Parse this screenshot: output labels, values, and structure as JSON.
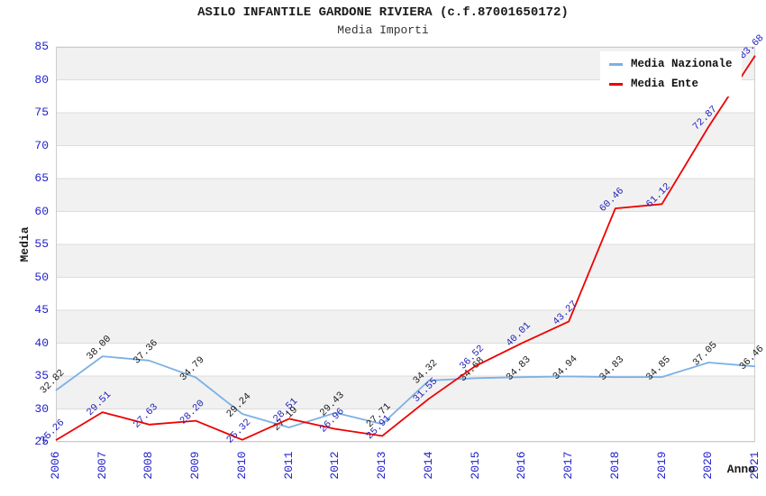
{
  "header": {
    "title": "ASILO INFANTILE GARDONE RIVIERA (c.f.87001650172)",
    "subtitle": "Media Importi"
  },
  "axes": {
    "y_title": "Media",
    "x_title": "Anno",
    "y_ticks": [
      25,
      30,
      35,
      40,
      45,
      50,
      55,
      60,
      65,
      70,
      75,
      80,
      85
    ]
  },
  "colors": {
    "nazionale_line": "#7cb0e4",
    "ente_line": "#ee0000",
    "nazionale_label": "#1a1a1a",
    "ente_label": "#2222bb",
    "axis_text": "#2222cc",
    "band_gray": "#f1f1f1",
    "band_white": "#ffffff",
    "grid_line": "#dcdcdc",
    "plot_border": "#cccccc"
  },
  "chart_data": {
    "type": "line",
    "title": "ASILO INFANTILE GARDONE RIVIERA (c.f.87001650172)",
    "subtitle": "Media Importi",
    "xlabel": "Anno",
    "ylabel": "Media",
    "ylim": [
      25,
      85
    ],
    "grid": "horizontal-bands-every-5",
    "legend_position": "top-right-inside",
    "x": [
      "2006",
      "2007",
      "2008",
      "2009",
      "2010",
      "2011",
      "2012",
      "2013",
      "2014",
      "2015",
      "2016",
      "2017",
      "2018",
      "2019",
      "2020",
      "2021"
    ],
    "series": [
      {
        "name": "Media Nazionale",
        "color": "#7cb0e4",
        "label_color": "#1a1a1a",
        "values": [
          32.82,
          38.0,
          37.36,
          34.79,
          29.24,
          27.19,
          29.43,
          27.71,
          34.32,
          34.68,
          34.83,
          34.94,
          34.83,
          34.85,
          37.05,
          36.46
        ]
      },
      {
        "name": "Media Ente",
        "color": "#ee0000",
        "label_color": "#2222bb",
        "values": [
          25.26,
          29.51,
          27.63,
          28.2,
          25.32,
          28.51,
          26.96,
          25.91,
          31.55,
          36.52,
          40.01,
          43.27,
          60.46,
          61.12,
          72.87,
          83.68
        ]
      }
    ]
  }
}
